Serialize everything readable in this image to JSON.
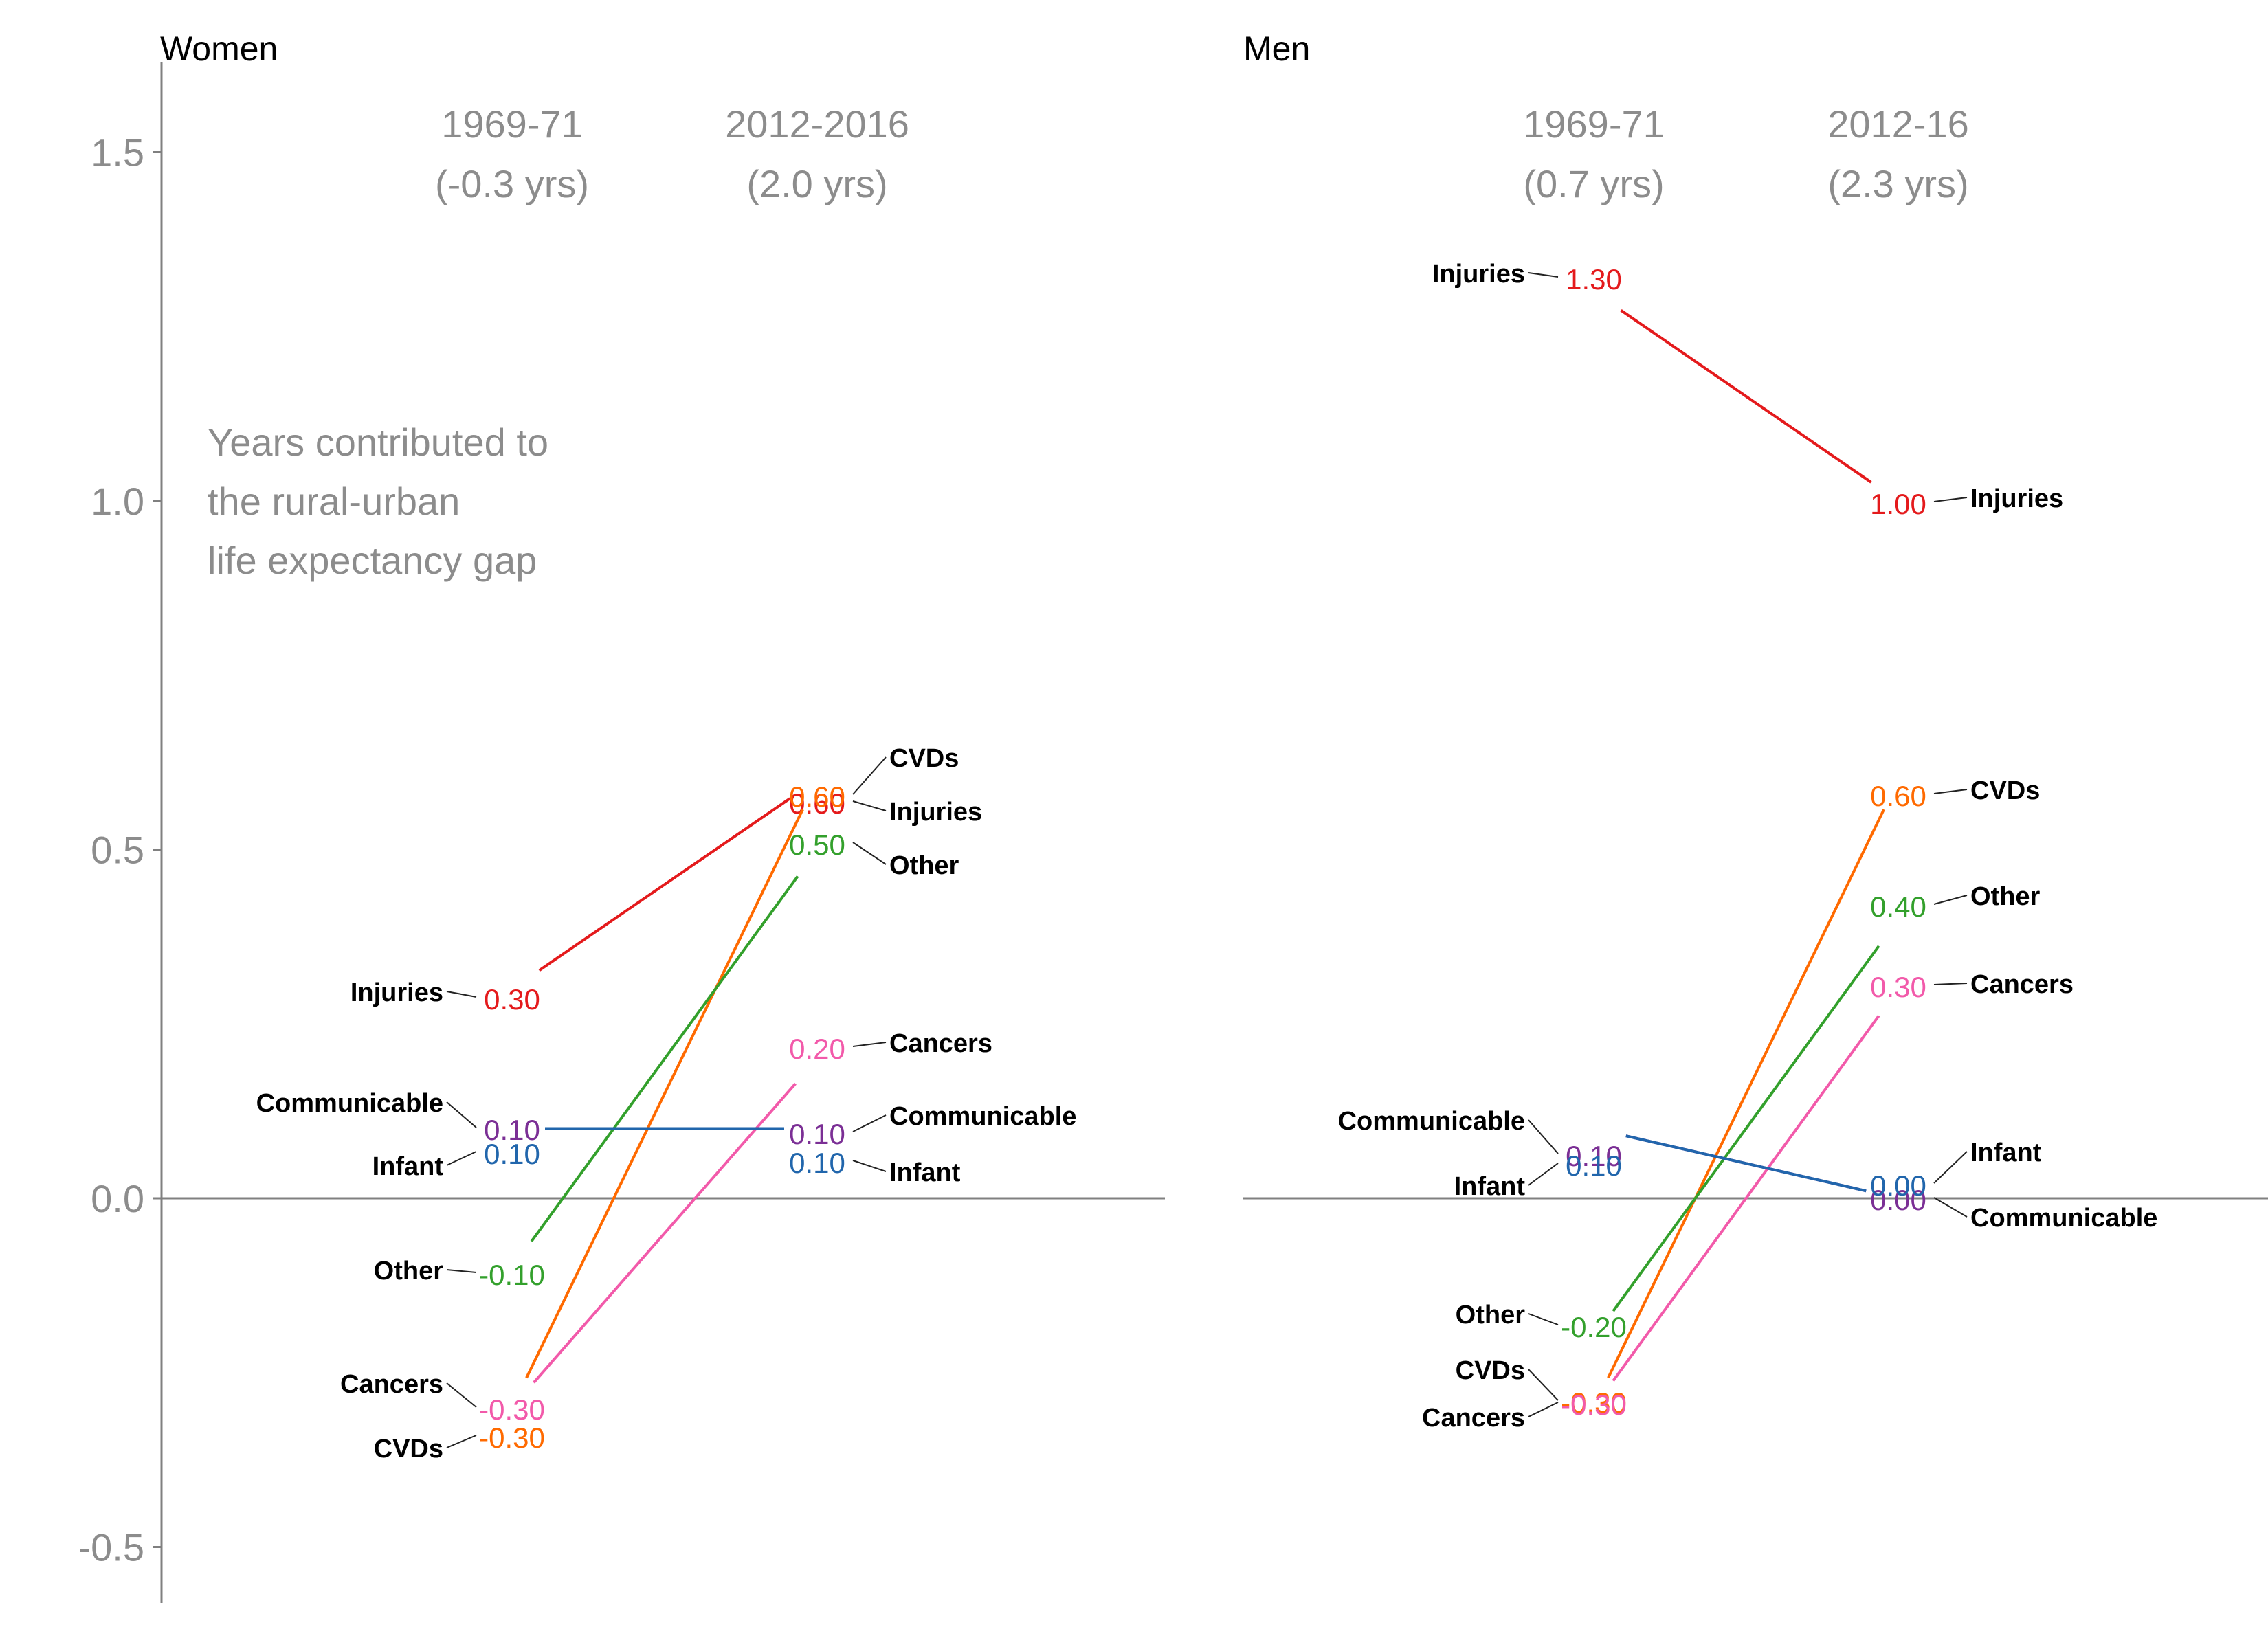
{
  "chart_data": {
    "type": "line",
    "note": [
      "Years contributed to",
      "the rural-urban",
      "life expectancy gap"
    ],
    "ylim": [
      -0.6,
      1.6
    ],
    "yticks": [
      -0.5,
      0.0,
      0.5,
      1.0,
      1.5
    ],
    "ytick_labels": [
      "-0.5",
      "0.0",
      "0.5",
      "1.0",
      "1.5"
    ],
    "colors": {
      "Injuries": "#e41a1c",
      "CVDs": "#ff6a00",
      "Other": "#33a02c",
      "Cancers": "#f25aaa",
      "Communicable": "#7b2f95",
      "Infant": "#2166ac"
    },
    "panels": [
      {
        "title": "Women",
        "periods": [
          {
            "label": "1969-71",
            "total": "(-0.3 yrs)"
          },
          {
            "label": "2012-2016",
            "total": "(2.0 yrs)"
          }
        ],
        "series": [
          {
            "name": "Injuries",
            "values": [
              0.3,
              0.6
            ],
            "labels": [
              "0.30",
              "0.60"
            ]
          },
          {
            "name": "CVDs",
            "values": [
              -0.3,
              0.6
            ],
            "labels": [
              "-0.30",
              "0.60"
            ]
          },
          {
            "name": "Other",
            "values": [
              -0.1,
              0.5
            ],
            "labels": [
              "-0.10",
              "0.50"
            ]
          },
          {
            "name": "Cancers",
            "values": [
              -0.3,
              0.2
            ],
            "labels": [
              "-0.30",
              "0.20"
            ]
          },
          {
            "name": "Communicable",
            "values": [
              0.1,
              0.1
            ],
            "labels": [
              "0.10",
              "0.10"
            ]
          },
          {
            "name": "Infant",
            "values": [
              0.1,
              0.1
            ],
            "labels": [
              "0.10",
              "0.10"
            ]
          }
        ]
      },
      {
        "title": "Men",
        "periods": [
          {
            "label": "1969-71",
            "total": "(0.7 yrs)"
          },
          {
            "label": "2012-16",
            "total": "(2.3 yrs)"
          }
        ],
        "series": [
          {
            "name": "Injuries",
            "values": [
              1.3,
              1.0
            ],
            "labels": [
              "1.30",
              "1.00"
            ]
          },
          {
            "name": "CVDs",
            "values": [
              -0.3,
              0.6
            ],
            "labels": [
              "-0.30",
              "0.60"
            ]
          },
          {
            "name": "Other",
            "values": [
              -0.2,
              0.4
            ],
            "labels": [
              "-0.20",
              "0.40"
            ]
          },
          {
            "name": "Cancers",
            "values": [
              -0.3,
              0.3
            ],
            "labels": [
              "-0.30",
              "0.30"
            ]
          },
          {
            "name": "Communicable",
            "values": [
              0.1,
              0.0
            ],
            "labels": [
              "0.10",
              "0.00"
            ]
          },
          {
            "name": "Infant",
            "values": [
              0.1,
              0.0
            ],
            "labels": [
              "0.10",
              "0.00"
            ]
          }
        ]
      }
    ]
  }
}
